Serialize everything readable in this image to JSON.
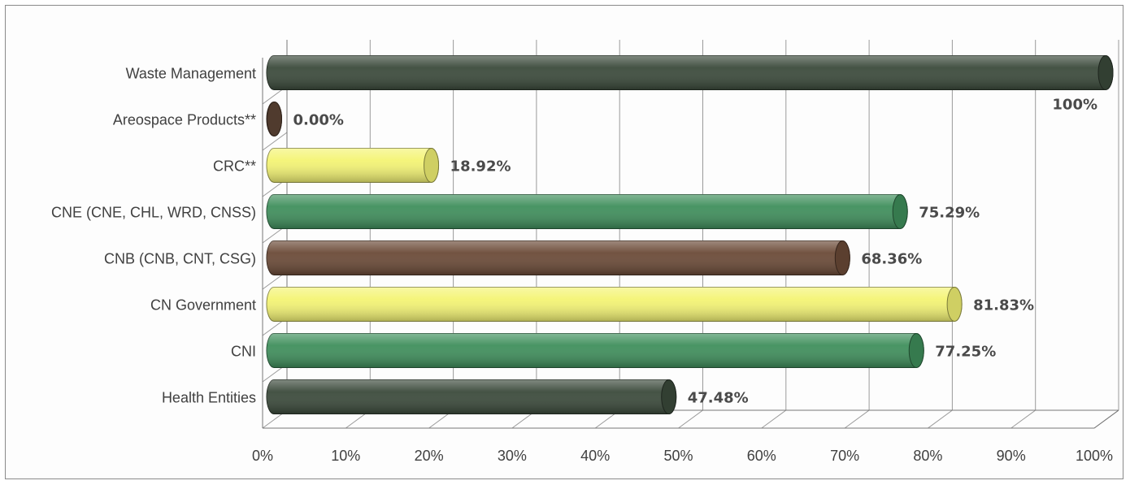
{
  "chart_data": {
    "type": "bar",
    "orientation": "horizontal",
    "style": "3d-cylinder",
    "grid": true,
    "legend": "none",
    "xlim": [
      0,
      100
    ],
    "x_ticks": [
      "0%",
      "10%",
      "20%",
      "30%",
      "40%",
      "50%",
      "60%",
      "70%",
      "80%",
      "90%",
      "100%"
    ],
    "categories": [
      "Waste Management",
      "Areospace Products**",
      "CRC**",
      "CNE (CNE, CHL, WRD, CNSS)",
      "CNB (CNB, CNT, CSG)",
      "CN Government",
      "CNI",
      "Health Entities"
    ],
    "values": [
      100,
      0,
      18.92,
      75.29,
      68.36,
      81.83,
      77.25,
      47.48
    ],
    "data_labels": [
      "100%",
      "0.00%",
      "18.92%",
      "75.29%",
      "68.36%",
      "81.83%",
      "77.25%",
      "47.48%"
    ],
    "colors": [
      "#3b4a3b",
      "#5e4536",
      "#f4f474",
      "#3f8f5c",
      "#6b4a37",
      "#f4f474",
      "#3f8f5c",
      "#3b4a3b"
    ]
  }
}
